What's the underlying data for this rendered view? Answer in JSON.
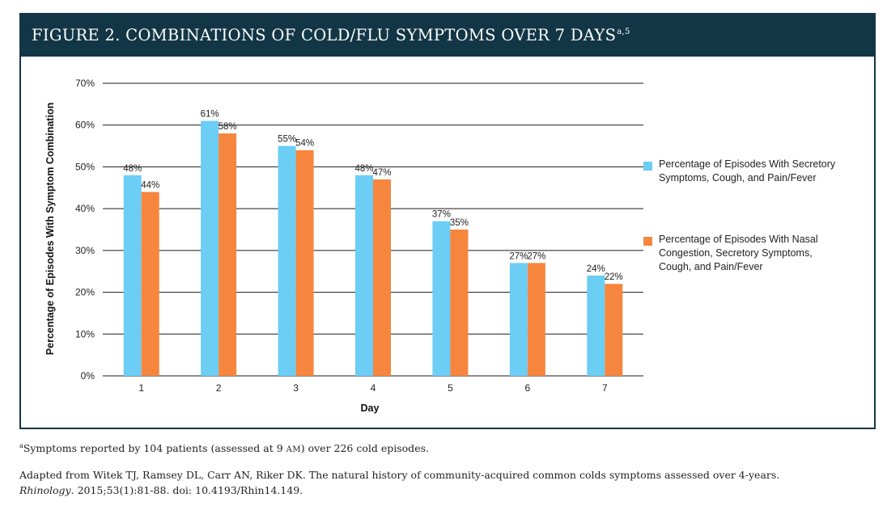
{
  "figure": {
    "title": "FIGURE 2. COMBINATIONS OF COLD/FLU SYMPTOMS OVER 7 DAYS",
    "title_superscript": "a,5",
    "header_color": "#123646"
  },
  "chart_data": {
    "type": "bar",
    "categories": [
      "1",
      "2",
      "3",
      "4",
      "5",
      "6",
      "7"
    ],
    "series": [
      {
        "name": "Percentage of Episodes With Secretory Symptoms, Cough, and Pain/Fever",
        "color": "#6ccdf5",
        "values": [
          48,
          61,
          55,
          48,
          37,
          27,
          24
        ],
        "labels": [
          "48%",
          "61%",
          "55%",
          "48%",
          "37%",
          "27%",
          "24%"
        ]
      },
      {
        "name": "Percentage of Episodes With Nasal Congestion, Secretory Symptoms, Cough, and Pain/Fever",
        "color": "#f6863e",
        "values": [
          44,
          58,
          54,
          47,
          35,
          27,
          22
        ],
        "labels": [
          "44%",
          "58%",
          "54%",
          "47%",
          "35%",
          "27%",
          "22%"
        ]
      }
    ],
    "xlabel": "Day",
    "ylabel": "Percentage of Episodes With Symptom Combination",
    "ylim": [
      0,
      70
    ],
    "yticks": [
      0,
      10,
      20,
      30,
      40,
      50,
      60,
      70
    ],
    "ytick_labels": [
      "0%",
      "10%",
      "20%",
      "30%",
      "40%",
      "50%",
      "60%",
      "70%"
    ],
    "grid": true,
    "legend_position": "right"
  },
  "footnote": {
    "marker": "a",
    "text_before": "Symptoms reported by 104 patients (assessed at 9 ",
    "am": "AM",
    "text_after": ") over 226 cold episodes."
  },
  "citation": {
    "line1": "Adapted from Witek TJ, Ramsey DL, Carr AN, Riker DK. The natural history of community-acquired common colds symptoms assessed over 4-years.",
    "journal": "Rhinology",
    "rest": ". 2015;53(1):81-88. doi: 10.4193/Rhin14.149."
  }
}
